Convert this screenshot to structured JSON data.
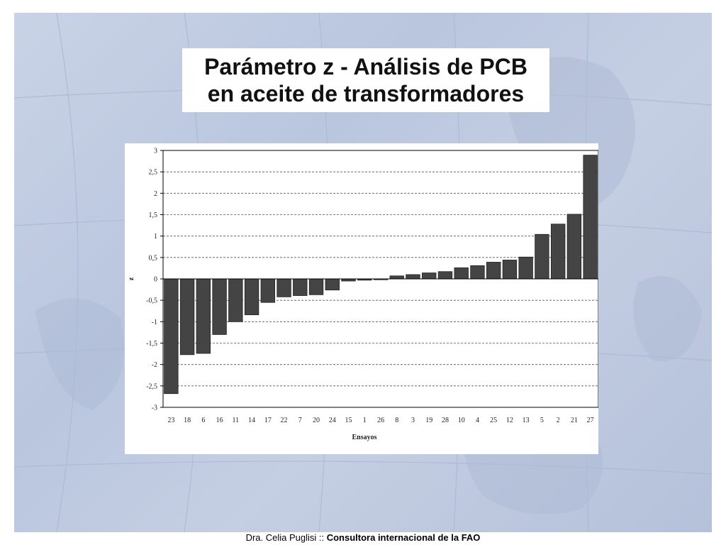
{
  "slide": {
    "title_line1": "Parámetro z - Análisis de PCB",
    "title_line2": "en aceite de transformadores",
    "footer_normal": "Dra. Celia Puglisi :: ",
    "footer_bold": "Consultora internacional de la FAO"
  },
  "colors": {
    "bar_fill": "#444444",
    "bar_stroke": "#222222",
    "background_panel": "#c2cde2"
  },
  "chart_data": {
    "type": "bar",
    "title": "",
    "xlabel": "Ensayos",
    "ylabel": "z",
    "ylim": [
      -3,
      3
    ],
    "yticks": [
      3,
      2.5,
      2,
      1.5,
      1,
      0.5,
      0,
      -0.5,
      -1,
      -1.5,
      -2,
      -2.5,
      -3
    ],
    "ytick_labels": [
      "3",
      "2,5",
      "2",
      "1,5",
      "1",
      "0,5",
      "0",
      "-0,5",
      "-1",
      "-1,5",
      "-2",
      "-2,5",
      "-3"
    ],
    "grid": true,
    "legend": "none",
    "categories": [
      "23",
      "18",
      "6",
      "16",
      "11",
      "14",
      "17",
      "22",
      "7",
      "20",
      "24",
      "15",
      "1",
      "26",
      "8",
      "3",
      "19",
      "28",
      "10",
      "4",
      "25",
      "12",
      "13",
      "5",
      "2",
      "21",
      "27"
    ],
    "values": [
      -2.68,
      -1.77,
      -1.74,
      -1.3,
      -1.0,
      -0.84,
      -0.55,
      -0.42,
      -0.39,
      -0.37,
      -0.26,
      -0.05,
      -0.03,
      -0.02,
      0.07,
      0.1,
      0.14,
      0.17,
      0.26,
      0.31,
      0.39,
      0.44,
      0.51,
      1.04,
      1.28,
      1.51,
      2.89
    ]
  }
}
